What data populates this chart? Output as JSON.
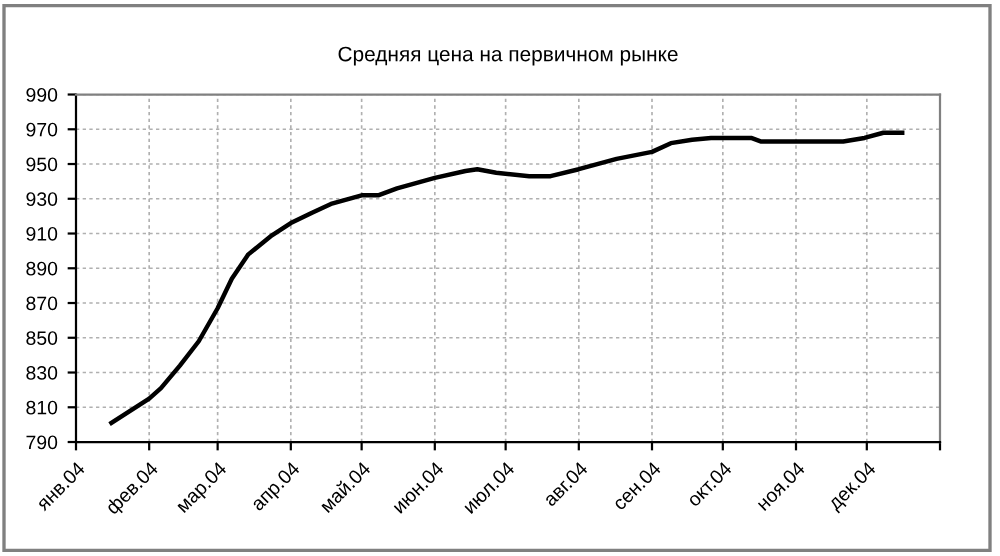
{
  "chart_data": {
    "type": "line",
    "title": "Средняя цена на первичном рынке",
    "x": [
      "2004-01-16",
      "2004-02-01",
      "2004-02-06",
      "2004-02-14",
      "2004-02-22",
      "2004-03-01",
      "2004-03-07",
      "2004-03-14",
      "2004-03-24",
      "2004-04-01",
      "2004-04-10",
      "2004-04-18",
      "2004-05-01",
      "2004-05-08",
      "2004-05-16",
      "2004-06-01",
      "2004-06-14",
      "2004-06-19",
      "2004-06-27",
      "2004-07-11",
      "2004-07-20",
      "2004-08-01",
      "2004-08-17",
      "2004-09-01",
      "2004-09-09",
      "2004-09-18",
      "2004-09-26",
      "2004-10-13",
      "2004-10-17",
      "2004-11-02",
      "2004-11-21",
      "2004-11-30",
      "2004-12-08",
      "2004-12-16"
    ],
    "series": [
      {
        "color": "#000000",
        "values": [
          801,
          815,
          821,
          834,
          848,
          867,
          884,
          898,
          909,
          916,
          922,
          927,
          932,
          932,
          936,
          942,
          946,
          947,
          945,
          943,
          943,
          947,
          953,
          957,
          962,
          964,
          965,
          965,
          963,
          963,
          963,
          965,
          968,
          968
        ]
      }
    ],
    "xlim": [
      "2004-01-01",
      "2005-01-01"
    ],
    "xticks": [
      {
        "value": "2004-01-01",
        "label": "янв.04"
      },
      {
        "value": "2004-02-01",
        "label": "фев.04"
      },
      {
        "value": "2004-03-01",
        "label": "мар.04"
      },
      {
        "value": "2004-04-01",
        "label": "апр.04"
      },
      {
        "value": "2004-05-01",
        "label": "май.04"
      },
      {
        "value": "2004-06-01",
        "label": "июн.04"
      },
      {
        "value": "2004-07-01",
        "label": "июл.04"
      },
      {
        "value": "2004-08-01",
        "label": "авг.04"
      },
      {
        "value": "2004-09-01",
        "label": "сен.04"
      },
      {
        "value": "2004-10-01",
        "label": "окт.04"
      },
      {
        "value": "2004-11-01",
        "label": "ноя.04"
      },
      {
        "value": "2004-12-01",
        "label": "дек.04"
      },
      {
        "value": "2005-01-01",
        "label": null
      }
    ],
    "ylim": [
      790,
      990
    ],
    "yticks": [
      790,
      810,
      830,
      850,
      870,
      890,
      910,
      930,
      950,
      970,
      990
    ],
    "grid": true,
    "legend": false,
    "marker": "none",
    "line_style": "solid"
  }
}
